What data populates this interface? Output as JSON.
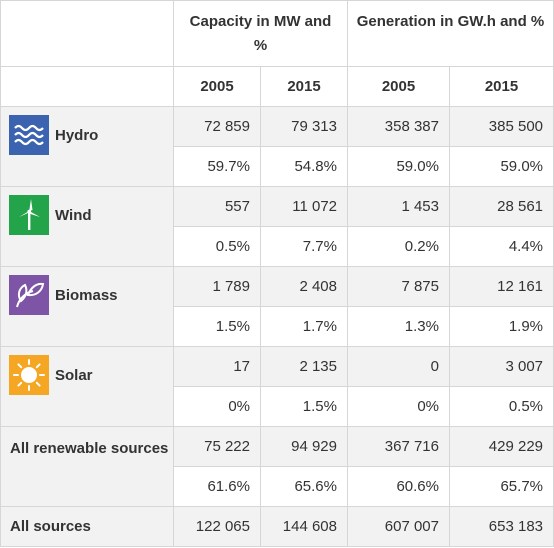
{
  "header": {
    "capacity_label": "Capacity in MW and %",
    "generation_label": "Generation in GW.h and %",
    "years": [
      "2005",
      "2015",
      "2005",
      "2015"
    ]
  },
  "rows": {
    "hydro": {
      "label": "Hydro",
      "icon": "water-waves-icon",
      "color": "#3b63b0",
      "values": [
        "72 859",
        "79 313",
        "358 387",
        "385 500"
      ],
      "percents": [
        "59.7%",
        "54.8%",
        "59.0%",
        "59.0%"
      ]
    },
    "wind": {
      "label": "Wind",
      "icon": "wind-turbine-icon",
      "color": "#23a34a",
      "values": [
        "557",
        "11 072",
        "1 453",
        "28 561"
      ],
      "percents": [
        "0.5%",
        "7.7%",
        "0.2%",
        "4.4%"
      ]
    },
    "biomass": {
      "label": "Biomass",
      "icon": "leaves-icon",
      "color": "#7e55a6",
      "values": [
        "1 789",
        "2 408",
        "7 875",
        "12 161"
      ],
      "percents": [
        "1.5%",
        "1.7%",
        "1.3%",
        "1.9%"
      ]
    },
    "solar": {
      "label": "Solar",
      "icon": "sun-icon",
      "color": "#f5a623",
      "values": [
        "17",
        "2 135",
        "0",
        "3 007"
      ],
      "percents": [
        "0%",
        "1.5%",
        "0%",
        "0.5%"
      ]
    },
    "renewable": {
      "label": "All renewable sources",
      "values": [
        "75 222",
        "94 929",
        "367 716",
        "429 229"
      ],
      "percents": [
        "61.6%",
        "65.6%",
        "60.6%",
        "65.7%"
      ]
    },
    "all": {
      "label": "All sources",
      "values": [
        "122 065",
        "144 608",
        "607 007",
        "653 183"
      ]
    }
  }
}
